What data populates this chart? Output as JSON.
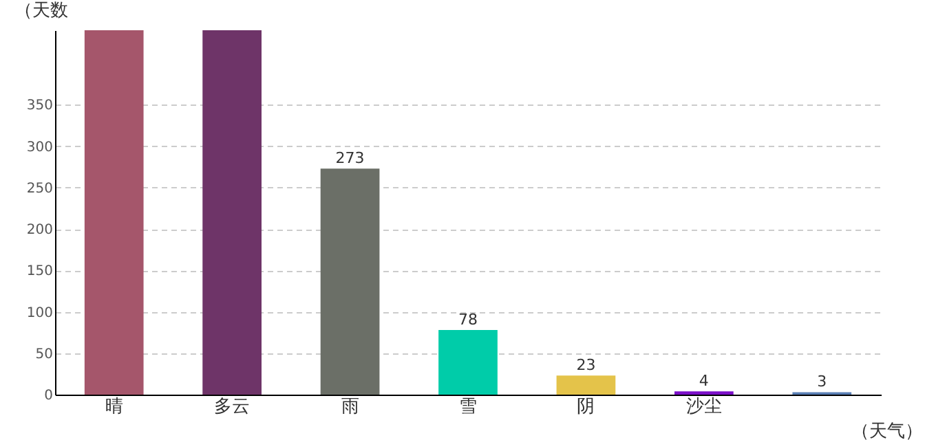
{
  "chart_data": {
    "type": "bar",
    "ylabel": "（天数",
    "xlabel": "（天气）",
    "categories": [
      "晴",
      "多云",
      "雨",
      "雪",
      "阴",
      "沙尘",
      null
    ],
    "values": [
      440,
      440,
      273,
      78,
      23,
      4,
      3
    ],
    "colors": [
      "#a5566b",
      "#6e3468",
      "#6b6f67",
      "#00cca9",
      "#e4c34a",
      "#7b10c8",
      "#5a7fb5"
    ],
    "value_labels": [
      null,
      null,
      "273",
      "78",
      "23",
      "4",
      "3"
    ],
    "ylim": [
      0,
      440
    ],
    "yticks": [
      0,
      50,
      100,
      150,
      200,
      250,
      300,
      350
    ],
    "grid": "y",
    "legend": false
  }
}
